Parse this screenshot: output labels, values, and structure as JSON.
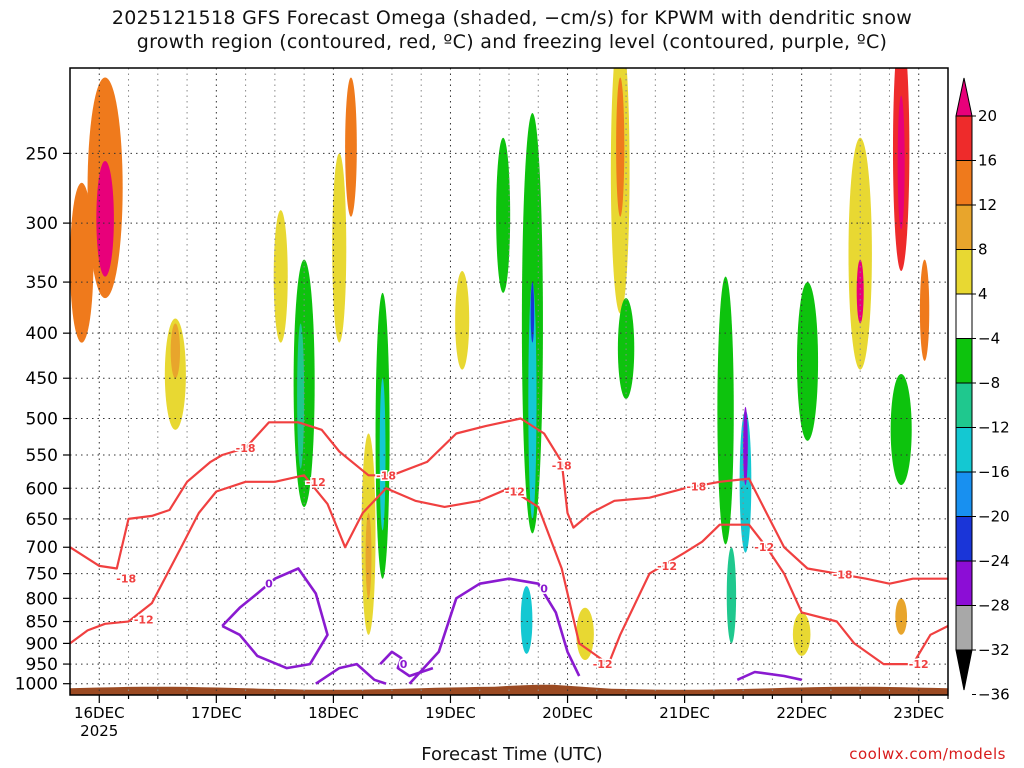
{
  "title_line1": "2025121518 GFS Forecast Omega (shaded, −cm/s) for KPWM with dendritic snow",
  "title_line2": "growth region (contoured, red, ºC) and freezing level (contoured, purple, ºC)",
  "x_axis_title": "Forecast Time (UTC)",
  "credit": "coolwx.com/models",
  "chart_data": {
    "type": "heatmap",
    "title": "2025121518 GFS Forecast Omega (shaded, −cm/s) for KPWM with dendritic snow growth region (contoured, red, ºC) and freezing level (contoured, purple, ºC)",
    "xlabel": "Forecast Time (UTC)",
    "ylabel": "",
    "x_ticks": [
      "16DEC",
      "17DEC",
      "18DEC",
      "19DEC",
      "20DEC",
      "21DEC",
      "22DEC",
      "23DEC"
    ],
    "x_tick_sublabel": "2025",
    "y_ticks": [
      250,
      300,
      350,
      400,
      450,
      500,
      550,
      600,
      650,
      700,
      750,
      800,
      850,
      900,
      950,
      1000
    ],
    "y_scale": "log-pressure (inverted)",
    "ylim": [
      1030,
      200
    ],
    "x_start_day": 15.75,
    "x_end_day": 23.25,
    "colorbar": {
      "labels": [
        "20",
        "16",
        "12",
        "8",
        "4",
        "−4",
        "−8",
        "−12",
        "−16",
        "−20",
        "−24",
        "−28",
        "−32",
        "−36"
      ],
      "colors": [
        "#e8007a",
        "#ee2b2b",
        "#ef7a1c",
        "#e8a52c",
        "#e8d832",
        "#ffffff",
        "#0dc30d",
        "#1fc88e",
        "#14c8d2",
        "#1890f0",
        "#1a35d8",
        "#8c0dd6",
        "#a8a8a8",
        "#000000"
      ]
    },
    "omega_cells": [
      {
        "t": 16.05,
        "p": 285,
        "wt": 0.3,
        "wp": 160,
        "c": "#ef7a1c"
      },
      {
        "t": 16.05,
        "p": 300,
        "wt": 0.15,
        "wp": 90,
        "c": "#e8007a"
      },
      {
        "t": 15.85,
        "p": 340,
        "wt": 0.2,
        "wp": 140,
        "c": "#ef7a1c"
      },
      {
        "t": 16.65,
        "p": 450,
        "wt": 0.18,
        "wp": 130,
        "c": "#e8d832"
      },
      {
        "t": 16.65,
        "p": 420,
        "wt": 0.08,
        "wp": 60,
        "c": "#e8a52c"
      },
      {
        "t": 17.55,
        "p": 350,
        "wt": 0.12,
        "wp": 120,
        "c": "#e8d832"
      },
      {
        "t": 17.75,
        "p": 480,
        "wt": 0.18,
        "wp": 300,
        "c": "#0dc30d"
      },
      {
        "t": 17.72,
        "p": 480,
        "wt": 0.06,
        "wp": 180,
        "c": "#1fc88e"
      },
      {
        "t": 18.05,
        "p": 330,
        "wt": 0.12,
        "wp": 160,
        "c": "#e8d832"
      },
      {
        "t": 18.3,
        "p": 700,
        "wt": 0.12,
        "wp": 360,
        "c": "#e8d832"
      },
      {
        "t": 18.3,
        "p": 720,
        "wt": 0.05,
        "wp": 160,
        "c": "#e8a52c"
      },
      {
        "t": 18.42,
        "p": 560,
        "wt": 0.12,
        "wp": 400,
        "c": "#0dc30d"
      },
      {
        "t": 18.42,
        "p": 560,
        "wt": 0.05,
        "wp": 220,
        "c": "#14c8d2"
      },
      {
        "t": 18.15,
        "p": 250,
        "wt": 0.1,
        "wp": 90,
        "c": "#ef7a1c"
      },
      {
        "t": 19.1,
        "p": 390,
        "wt": 0.12,
        "wp": 100,
        "c": "#e8d832"
      },
      {
        "t": 19.45,
        "p": 300,
        "wt": 0.12,
        "wp": 120,
        "c": "#0dc30d"
      },
      {
        "t": 19.7,
        "p": 450,
        "wt": 0.18,
        "wp": 450,
        "c": "#0dc30d"
      },
      {
        "t": 19.7,
        "p": 500,
        "wt": 0.07,
        "wp": 300,
        "c": "#14c8d2"
      },
      {
        "t": 19.7,
        "p": 380,
        "wt": 0.03,
        "wp": 60,
        "c": "#1a35d8"
      },
      {
        "t": 19.65,
        "p": 850,
        "wt": 0.1,
        "wp": 150,
        "c": "#14c8d2"
      },
      {
        "t": 20.15,
        "p": 880,
        "wt": 0.15,
        "wp": 120,
        "c": "#e8d832"
      },
      {
        "t": 20.45,
        "p": 280,
        "wt": 0.16,
        "wp": 200,
        "c": "#e8d832"
      },
      {
        "t": 20.45,
        "p": 250,
        "wt": 0.07,
        "wp": 90,
        "c": "#ef7a1c"
      },
      {
        "t": 20.5,
        "p": 420,
        "wt": 0.14,
        "wp": 110,
        "c": "#0dc30d"
      },
      {
        "t": 21.35,
        "p": 520,
        "wt": 0.14,
        "wp": 350,
        "c": "#0dc30d"
      },
      {
        "t": 21.52,
        "p": 600,
        "wt": 0.1,
        "wp": 220,
        "c": "#14c8d2"
      },
      {
        "t": 21.52,
        "p": 540,
        "wt": 0.04,
        "wp": 110,
        "c": "#8c0dd6"
      },
      {
        "t": 21.4,
        "p": 800,
        "wt": 0.08,
        "wp": 200,
        "c": "#1fc88e"
      },
      {
        "t": 22.05,
        "p": 440,
        "wt": 0.18,
        "wp": 180,
        "c": "#0dc30d"
      },
      {
        "t": 22.0,
        "p": 880,
        "wt": 0.15,
        "wp": 100,
        "c": "#e8d832"
      },
      {
        "t": 22.5,
        "p": 340,
        "wt": 0.2,
        "wp": 200,
        "c": "#e8d832"
      },
      {
        "t": 22.5,
        "p": 360,
        "wt": 0.06,
        "wp": 60,
        "c": "#e8007a"
      },
      {
        "t": 22.85,
        "p": 260,
        "wt": 0.14,
        "wp": 160,
        "c": "#ee2b2b"
      },
      {
        "t": 22.85,
        "p": 260,
        "wt": 0.06,
        "wp": 90,
        "c": "#e8007a"
      },
      {
        "t": 22.85,
        "p": 520,
        "wt": 0.18,
        "wp": 150,
        "c": "#0dc30d"
      },
      {
        "t": 22.85,
        "p": 840,
        "wt": 0.1,
        "wp": 80,
        "c": "#e8a52c"
      },
      {
        "t": 23.05,
        "p": 380,
        "wt": 0.08,
        "wp": 100,
        "c": "#ef7a1c"
      }
    ],
    "dgz_contours": [
      {
        "label": "-18",
        "points": [
          [
            15.75,
            700
          ],
          [
            16.0,
            735
          ],
          [
            16.15,
            740
          ],
          [
            16.25,
            650
          ],
          [
            16.45,
            645
          ],
          [
            16.6,
            635
          ],
          [
            16.75,
            590
          ],
          [
            16.95,
            560
          ],
          [
            17.05,
            550
          ],
          [
            17.25,
            540
          ],
          [
            17.45,
            505
          ],
          [
            17.7,
            505
          ],
          [
            17.9,
            515
          ],
          [
            18.05,
            545
          ],
          [
            18.3,
            580
          ],
          [
            18.5,
            580
          ],
          [
            18.8,
            560
          ],
          [
            19.05,
            520
          ],
          [
            19.3,
            510
          ],
          [
            19.6,
            500
          ],
          [
            19.8,
            520
          ],
          [
            19.95,
            560
          ],
          [
            20.0,
            640
          ],
          [
            20.05,
            665
          ],
          [
            20.2,
            640
          ],
          [
            20.4,
            620
          ],
          [
            20.7,
            615
          ],
          [
            21.0,
            600
          ],
          [
            21.3,
            590
          ],
          [
            21.55,
            585
          ],
          [
            21.7,
            640
          ],
          [
            21.85,
            700
          ],
          [
            22.05,
            740
          ],
          [
            22.3,
            750
          ],
          [
            22.55,
            760
          ],
          [
            22.75,
            770
          ],
          [
            22.95,
            760
          ],
          [
            23.25,
            760
          ]
        ]
      },
      {
        "label": "-12",
        "points": [
          [
            15.75,
            900
          ],
          [
            15.9,
            870
          ],
          [
            16.05,
            855
          ],
          [
            16.25,
            850
          ],
          [
            16.45,
            810
          ],
          [
            16.7,
            700
          ],
          [
            16.85,
            640
          ],
          [
            17.0,
            605
          ],
          [
            17.25,
            590
          ],
          [
            17.5,
            590
          ],
          [
            17.75,
            580
          ],
          [
            17.95,
            625
          ],
          [
            18.1,
            700
          ],
          [
            18.25,
            640
          ],
          [
            18.45,
            600
          ],
          [
            18.7,
            620
          ],
          [
            18.95,
            630
          ],
          [
            19.25,
            620
          ],
          [
            19.5,
            600
          ],
          [
            19.75,
            630
          ],
          [
            19.95,
            740
          ],
          [
            20.1,
            900
          ],
          [
            20.35,
            950
          ],
          [
            20.45,
            880
          ],
          [
            20.7,
            750
          ],
          [
            21.0,
            710
          ],
          [
            21.15,
            690
          ],
          [
            21.3,
            660
          ],
          [
            21.55,
            660
          ],
          [
            21.7,
            700
          ],
          [
            21.85,
            750
          ],
          [
            22.0,
            830
          ],
          [
            22.3,
            850
          ],
          [
            22.45,
            900
          ],
          [
            22.7,
            950
          ],
          [
            22.95,
            950
          ],
          [
            23.1,
            880
          ],
          [
            23.25,
            860
          ]
        ]
      }
    ],
    "freezing_contours": [
      {
        "label": "0",
        "points": [
          [
            17.05,
            860
          ],
          [
            17.2,
            820
          ],
          [
            17.35,
            790
          ],
          [
            17.5,
            760
          ],
          [
            17.7,
            740
          ],
          [
            17.85,
            790
          ],
          [
            17.95,
            880
          ],
          [
            17.8,
            950
          ],
          [
            17.6,
            960
          ],
          [
            17.35,
            930
          ],
          [
            17.2,
            880
          ],
          [
            17.05,
            860
          ]
        ]
      },
      {
        "label": "0",
        "points": [
          [
            17.85,
            1000
          ],
          [
            18.05,
            960
          ],
          [
            18.2,
            950
          ],
          [
            18.35,
            990
          ],
          [
            18.45,
            1000
          ]
        ]
      },
      {
        "label": "0",
        "points": [
          [
            18.4,
            950
          ],
          [
            18.5,
            920
          ],
          [
            18.58,
            935
          ],
          [
            18.55,
            960
          ],
          [
            18.65,
            980
          ],
          [
            18.85,
            960
          ]
        ]
      },
      {
        "label": "0",
        "points": [
          [
            18.65,
            1000
          ],
          [
            18.9,
            920
          ],
          [
            19.05,
            800
          ],
          [
            19.25,
            770
          ],
          [
            19.5,
            760
          ],
          [
            19.75,
            770
          ],
          [
            19.9,
            830
          ],
          [
            20.0,
            920
          ],
          [
            20.1,
            980
          ]
        ]
      },
      {
        "label": "",
        "points": [
          [
            21.45,
            990
          ],
          [
            21.6,
            970
          ],
          [
            21.85,
            980
          ],
          [
            22.0,
            990
          ]
        ]
      }
    ]
  }
}
